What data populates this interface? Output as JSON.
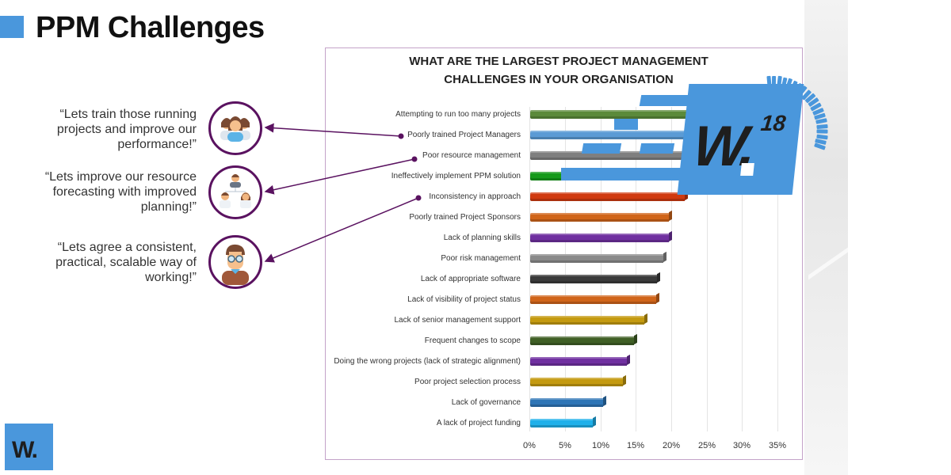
{
  "slide": {
    "title": "PPM Challenges",
    "accent_color": "#4a97dc",
    "connector_color": "#5a1260"
  },
  "quotes": [
    {
      "text": "“Lets train those running projects and improve our performance!”",
      "icon": "team-group-icon",
      "links_to": "Poorly trained Project Managers"
    },
    {
      "text": "“Lets improve our resource forecasting with improved planning!”",
      "icon": "org-hierarchy-icon",
      "links_to": "Poor resource management"
    },
    {
      "text": "“Lets agree a consistent, practical, scalable way of working!”",
      "icon": "person-glasses-icon",
      "links_to": "Inconsistency in approach"
    }
  ],
  "logo": {
    "main": "W.",
    "superscript": "18",
    "corner": "W."
  },
  "chart_data": {
    "type": "bar",
    "orientation": "horizontal",
    "title": "WHAT ARE THE LARGEST PROJECT MANAGEMENT CHALLENGES IN YOUR ORGANISATION",
    "title_lines": [
      "WHAT ARE THE LARGEST PROJECT MANAGEMENT",
      "CHALLENGES IN YOUR ORGANISATION"
    ],
    "xlabel": "",
    "ylabel": "",
    "xlim": [
      0,
      35
    ],
    "x_ticks": [
      "0%",
      "5%",
      "10%",
      "15%",
      "20%",
      "25%",
      "30%",
      "35%"
    ],
    "grid": true,
    "legend": "none",
    "categories": [
      "Attempting to run too many projects",
      "Poorly trained Project Managers",
      "Poor resource management",
      "Ineffectively implement PPM solution",
      "Inconsistency in approach",
      "Poorly trained Project Sponsors",
      "Lack of planning skills",
      "Poor risk management",
      "Lack of appropriate software",
      "Lack of visibility of project status",
      "Lack of senior management support",
      "Frequent changes to scope",
      "Doing the wrong projects (lack of strategic alignment)",
      "Poor project selection process",
      "Lack of governance",
      "A lack of project funding"
    ],
    "values": [
      22.5,
      22.3,
      22.1,
      21.9,
      21.8,
      19.5,
      19.5,
      18.8,
      17.9,
      17.8,
      16.1,
      14.6,
      13.6,
      13.1,
      10.3,
      8.8
    ],
    "colors": [
      "#5b8a3a",
      "#5b9bd5",
      "#7f7f7f",
      "#159a1a",
      "#d03a10",
      "#d0651a",
      "#7030a0",
      "#8a8a8a",
      "#3a3a3a",
      "#d0651a",
      "#c49a10",
      "#3f5f25",
      "#7030a0",
      "#c49a10",
      "#2e75b6",
      "#1fb0ea"
    ],
    "note": "Top bars partially occluded by W.18 logo; values estimated"
  }
}
